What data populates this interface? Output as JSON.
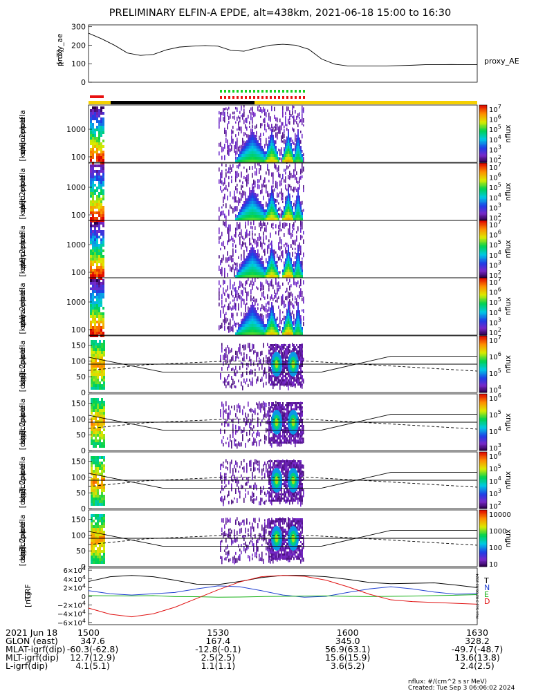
{
  "title": "PRELIMINARY ELFIN-A EPDE, alt=438km, 2021-06-18 15:00 to 16:30",
  "ae": {
    "ylabel_lines": [
      "proxy_ae",
      "[nT]"
    ],
    "ticks": [
      "300",
      "200",
      "100",
      "0"
    ],
    "tick_values": [
      300,
      200,
      100,
      0
    ],
    "ylim": [
      0,
      310
    ],
    "legend": "proxy_AE"
  },
  "spec_panels": [
    {
      "ylabel_lines": [
        "ela",
        "pef",
        "en",
        "spec2plot",
        "omni",
        "[keV]"
      ],
      "ticks": [
        "1000",
        "100"
      ],
      "cb_ticks": [
        [
          "10",
          "7"
        ],
        [
          "10",
          "6"
        ],
        [
          "10",
          "5"
        ],
        [
          "10",
          "4"
        ],
        [
          "10",
          "3"
        ],
        [
          "10",
          "2"
        ]
      ],
      "cb_label": "nflux"
    },
    {
      "ylabel_lines": [
        "ela",
        "pef",
        "en",
        "spec2plot",
        "anti",
        "[keV]"
      ],
      "ticks": [
        "1000",
        "100"
      ],
      "cb_ticks": [
        [
          "10",
          "7"
        ],
        [
          "10",
          "6"
        ],
        [
          "10",
          "5"
        ],
        [
          "10",
          "4"
        ],
        [
          "10",
          "3"
        ],
        [
          "10",
          "2"
        ]
      ],
      "cb_label": "nflux"
    },
    {
      "ylabel_lines": [
        "ela",
        "pef",
        "en",
        "spec2plot",
        "perp",
        "[keV]"
      ],
      "ticks": [
        "1000",
        "100"
      ],
      "cb_ticks": [
        [
          "10",
          "7"
        ],
        [
          "10",
          "6"
        ],
        [
          "10",
          "5"
        ],
        [
          "10",
          "4"
        ],
        [
          "10",
          "3"
        ],
        [
          "10",
          "2"
        ]
      ],
      "cb_label": "nflux"
    },
    {
      "ylabel_lines": [
        "ela",
        "pef",
        "en",
        "spec2plot",
        "para",
        "[keV]"
      ],
      "ticks": [
        "1000",
        "100"
      ],
      "cb_ticks": [
        [
          "10",
          "7"
        ],
        [
          "10",
          "6"
        ],
        [
          "10",
          "5"
        ],
        [
          "10",
          "4"
        ],
        [
          "10",
          "3"
        ],
        [
          "10",
          "2"
        ]
      ],
      "cb_label": "nflux"
    }
  ],
  "pa_panels": [
    {
      "ylabel_lines": [
        "ela",
        "pef",
        "pa",
        "spec2plot",
        "ch0LC",
        "[deg]"
      ],
      "ticks": [
        "150",
        "100",
        "50",
        "0"
      ],
      "cb_ticks": [
        [
          "10",
          "7"
        ],
        [
          "10",
          "6"
        ],
        [
          "10",
          "5"
        ],
        [
          "10",
          "4"
        ]
      ],
      "cb_label": "nflux"
    },
    {
      "ylabel_lines": [
        "ela",
        "pef",
        "pa",
        "spec2plot",
        "ch1LC",
        "[deg]"
      ],
      "ticks": [
        "150",
        "100",
        "50",
        "0"
      ],
      "cb_ticks": [
        [
          "10",
          "6"
        ],
        [
          "10",
          "5"
        ],
        [
          "10",
          "4"
        ],
        [
          "10",
          "3"
        ]
      ],
      "cb_label": "nflux"
    },
    {
      "ylabel_lines": [
        "ela",
        "pef",
        "pa",
        "spec2plot",
        "ch2LC",
        "[deg]"
      ],
      "ticks": [
        "150",
        "100",
        "50",
        "0"
      ],
      "cb_ticks": [
        [
          "10",
          "6"
        ],
        [
          "10",
          "5"
        ],
        [
          "10",
          "4"
        ],
        [
          "10",
          "3"
        ],
        [
          "10",
          "2"
        ]
      ],
      "cb_label": "nflux"
    },
    {
      "ylabel_lines": [
        "ela",
        "pef",
        "pa",
        "spec2plot",
        "ch3LC",
        "[deg]"
      ],
      "ticks": [
        "150",
        "100",
        "50",
        "0"
      ],
      "cb_ticks": [
        [
          "10000",
          ""
        ],
        [
          "1000",
          ""
        ],
        [
          "100",
          ""
        ],
        [
          "10",
          ""
        ]
      ],
      "cb_label": "nflux"
    }
  ],
  "igrf": {
    "ylabel_lines": [
      "IGRF",
      "[nT]"
    ],
    "ticks": [
      [
        "6×10",
        "4"
      ],
      [
        "4×10",
        "4"
      ],
      [
        "2×10",
        "4"
      ],
      [
        "0",
        ""
      ],
      [
        "−2×10",
        "4"
      ],
      [
        "−4×10",
        "4"
      ],
      [
        "−6×10",
        "4"
      ]
    ],
    "tick_values": [
      60000,
      40000,
      20000,
      0,
      -20000,
      -40000,
      -60000
    ],
    "ylim": [
      -65000,
      65000
    ],
    "legend": [
      {
        "label": "T",
        "color": "#000000"
      },
      {
        "label": "N",
        "color": "#1f3fd0"
      },
      {
        "label": "E",
        "color": "#19b219"
      },
      {
        "label": "D",
        "color": "#e01010"
      }
    ],
    "side_note": "Mon Sep  3 02:06:02 2024"
  },
  "x_ticks": [
    "1500",
    "1530",
    "1600",
    "1630"
  ],
  "x_tick_minutes": [
    0,
    30,
    60,
    90
  ],
  "footer": {
    "date": "2021 Jun 18",
    "rows": [
      {
        "label": "GLON (east)",
        "values": [
          "347.6",
          "167.4",
          "345.0",
          "328.2"
        ]
      },
      {
        "label": "MLAT-igrf(dip)",
        "values": [
          "-60.3(-62.8)",
          "-12.8(-0.1)",
          "56.9(63.1)",
          "-49.7(-48.7)"
        ]
      },
      {
        "label": "MLT-igrf(dip)",
        "values": [
          "12.7(12.9)",
          "2.5(2.5)",
          "15.6(15.9)",
          "13.6(13.8)"
        ]
      },
      {
        "label": "L-igrf(dip)",
        "values": [
          "4.1(5.1)",
          "1.1(1.1)",
          "3.6(5.2)",
          "2.4(2.5)"
        ]
      }
    ],
    "units_note": "nflux: #/(cm^2 s sr MeV)",
    "created": "Created: Tue Sep  3 06:06:02 2024"
  },
  "colors": {
    "day_bar": "#f5d000",
    "night_bar": "#000000",
    "marker_red": "#e81010",
    "marker_green": "#10d020"
  },
  "chart_data": [
    {
      "type": "line",
      "series": [
        {
          "name": "proxy_AE",
          "x": [
            0,
            3,
            6,
            9,
            12,
            15,
            18,
            21,
            24,
            27,
            30,
            33,
            36,
            39,
            42,
            45,
            48,
            51,
            54,
            57,
            60,
            63,
            66,
            69,
            72,
            75,
            78,
            81,
            84,
            87,
            90
          ],
          "y": [
            265,
            235,
            200,
            158,
            145,
            150,
            175,
            190,
            195,
            198,
            195,
            172,
            168,
            185,
            200,
            205,
            200,
            178,
            125,
            98,
            88,
            88,
            88,
            88,
            90,
            92,
            95,
            95,
            96,
            95,
            95
          ]
        }
      ],
      "xlim": [
        0,
        90
      ],
      "ylim": [
        0,
        310
      ]
    },
    {
      "type": "line",
      "series": [
        {
          "name": "T",
          "x": [
            0,
            5,
            10,
            15,
            20,
            25,
            30,
            35,
            40,
            45,
            50,
            55,
            60,
            65,
            70,
            75,
            80,
            85,
            90
          ],
          "y": [
            34000,
            45000,
            48000,
            45000,
            37000,
            28000,
            27000,
            34000,
            43000,
            48000,
            48000,
            45000,
            39000,
            32000,
            29000,
            30000,
            31000,
            26000,
            20000
          ]
        },
        {
          "name": "N",
          "x": [
            0,
            5,
            10,
            15,
            20,
            25,
            30,
            35,
            40,
            45,
            50,
            55,
            60,
            65,
            70,
            75,
            80,
            85,
            90
          ],
          "y": [
            13000,
            6000,
            3000,
            6000,
            9000,
            17000,
            24000,
            22000,
            13000,
            3000,
            -2000,
            0,
            9000,
            17000,
            22000,
            17000,
            10000,
            5000,
            6000
          ]
        },
        {
          "name": "E",
          "x": [
            0,
            5,
            10,
            15,
            20,
            25,
            30,
            35,
            40,
            45,
            50,
            55,
            60,
            65,
            70,
            75,
            80,
            85,
            90
          ],
          "y": [
            1500,
            1200,
            1000,
            1500,
            -500,
            -800,
            -2000,
            -1500,
            -500,
            0,
            500,
            1000,
            0,
            -500,
            0,
            500,
            1500,
            2500,
            4000
          ]
        },
        {
          "name": "D",
          "x": [
            0,
            5,
            10,
            15,
            20,
            25,
            30,
            35,
            40,
            45,
            50,
            55,
            60,
            65,
            70,
            75,
            80,
            85,
            90
          ],
          "y": [
            -27000,
            -41000,
            -47000,
            -40000,
            -25000,
            -5000,
            15000,
            33000,
            45000,
            48000,
            46000,
            37000,
            22000,
            5000,
            -8000,
            -12000,
            -14000,
            -16000,
            -18000
          ]
        }
      ],
      "xlim": [
        0,
        90
      ],
      "ylim": [
        -65000,
        65000
      ]
    }
  ]
}
